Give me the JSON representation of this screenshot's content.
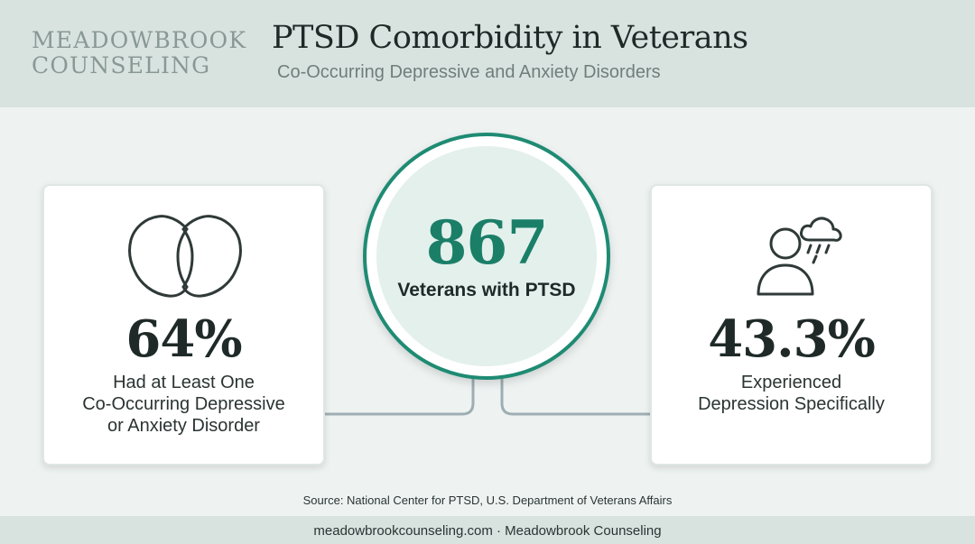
{
  "header": {
    "brand_line1": "MEADOWBROOK",
    "brand_line2": "COUNSELING",
    "title": "PTSD Comorbidity in Veterans",
    "subtitle": "Co-Occurring Depressive and Anxiety Disorders"
  },
  "center": {
    "value": "867",
    "label": "Veterans with PTSD"
  },
  "left_card": {
    "icon": "overlapping-circles-icon",
    "value": "64%",
    "desc_lines": [
      "Had at Least One",
      "Co-Occurring Depressive",
      "or Anxiety Disorder"
    ]
  },
  "right_card": {
    "icon": "person-rain-cloud-icon",
    "value": "43.3%",
    "desc_lines": [
      "Experienced",
      "Depression Specifically"
    ]
  },
  "source": "Source: National Center for PTSD, U.S. Department of Veterans Affairs",
  "footer": "meadowbrookcounseling.com · Meadowbrook Counseling",
  "colors": {
    "accent": "#1e8b73",
    "header_bg": "#d8e3e0",
    "page_bg": "#eef3f2",
    "connector": "#9eaeb2"
  }
}
